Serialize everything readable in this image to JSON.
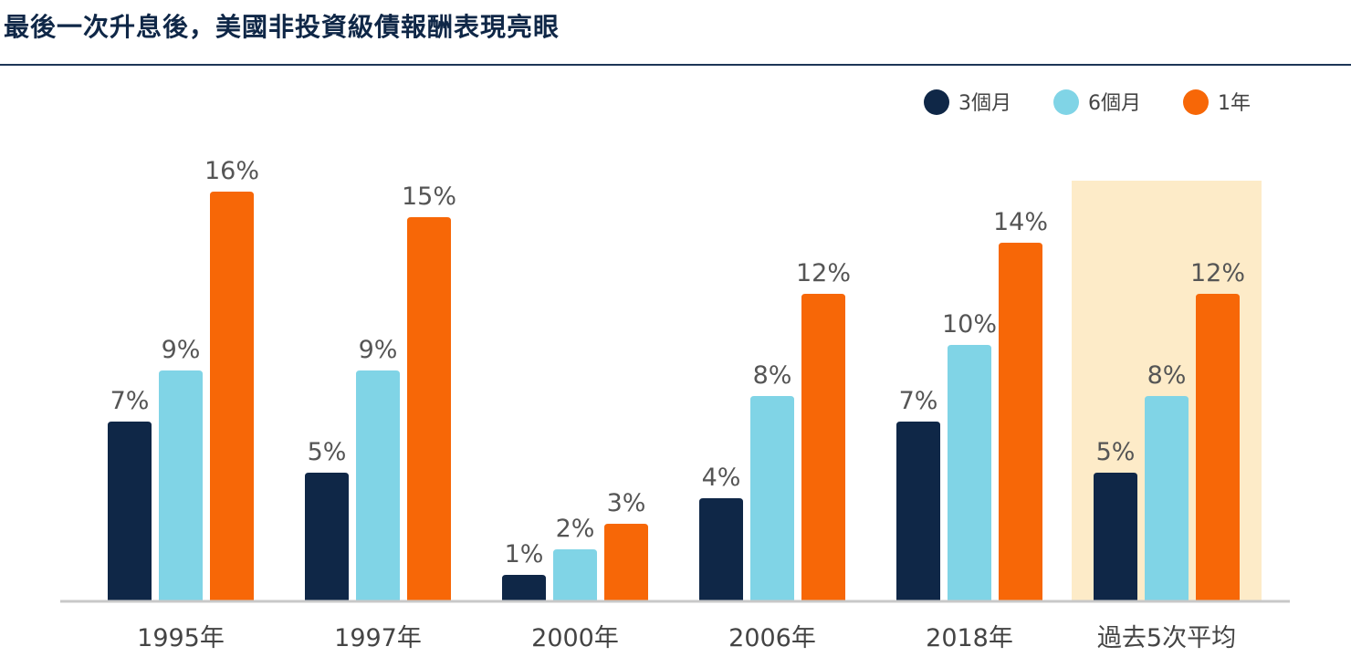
{
  "header": {
    "title": "最後一次升息後，美國非投資級債報酬表現亮眼"
  },
  "chart_data": {
    "type": "bar",
    "title": "最後一次升息後，美國非投資級債報酬表現亮眼",
    "categories": [
      "1995年",
      "1997年",
      "2000年",
      "2006年",
      "2018年",
      "過去5次平均"
    ],
    "series": [
      {
        "name": "3個月",
        "color": "#0f2747",
        "values": [
          7,
          5,
          1,
          4,
          7,
          5
        ],
        "labels": [
          "7%",
          "5%",
          "1%",
          "4%",
          "7%",
          "5%"
        ]
      },
      {
        "name": "6個月",
        "color": "#80d4e6",
        "values": [
          9,
          9,
          2,
          8,
          10,
          8
        ],
        "labels": [
          "9%",
          "9%",
          "2%",
          "8%",
          "10%",
          "8%"
        ]
      },
      {
        "name": "1年",
        "color": "#f76707",
        "values": [
          16,
          15,
          3,
          12,
          14,
          12
        ],
        "labels": [
          "16%",
          "15%",
          "3%",
          "12%",
          "14%",
          "12%"
        ]
      }
    ],
    "ylim": [
      0,
      18
    ],
    "grid": false,
    "legend": "top-right",
    "highlight_category": "過去5次平均",
    "highlight_color": "#fdebc8"
  }
}
